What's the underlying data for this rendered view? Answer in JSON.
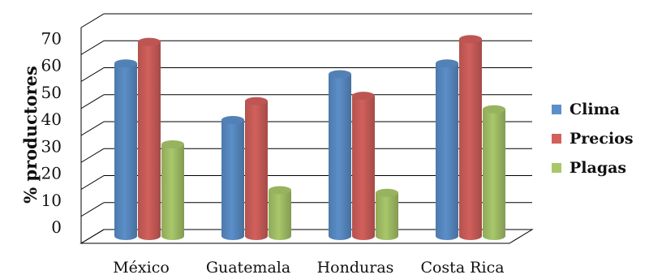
{
  "chart_data": {
    "type": "bar",
    "style": "3d-cylinder",
    "categories": [
      "México",
      "Guatemala",
      "Honduras",
      "Costa Rica"
    ],
    "series": [
      {
        "name": "Clima",
        "color": "#5B8FC9",
        "values": [
          64,
          43,
          60,
          64
        ]
      },
      {
        "name": "Precios",
        "color": "#D2605C",
        "values": [
          72,
          50,
          52,
          73
        ]
      },
      {
        "name": "Plagas",
        "color": "#A8C76A",
        "values": [
          34,
          17,
          16,
          47
        ]
      }
    ],
    "ylabel": "% productores",
    "xlabel": "",
    "yticks": [
      0,
      10,
      20,
      30,
      40,
      50,
      60,
      70
    ],
    "ylim": [
      0,
      80
    ],
    "grid": true,
    "legend_position": "right"
  }
}
